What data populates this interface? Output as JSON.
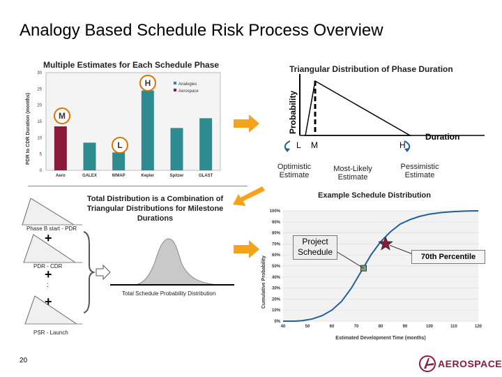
{
  "title": "Analogy Based Schedule Risk Process Overview",
  "left_panel": {
    "heading": "Multiple Estimates for Each Schedule Phase",
    "markers": {
      "h": "H",
      "m": "M",
      "l": "L"
    }
  },
  "right_panel": {
    "heading": "Triangular Distribution of Phase Duration",
    "y_label": "Probability",
    "x_label": "Duration",
    "points": {
      "l": "L",
      "m": "M",
      "h": "H"
    },
    "optimistic": "Optimistic Estimate",
    "most_likely": "Most-Likely Estimate",
    "pessimistic": "Pessimistic Estimate"
  },
  "middle": {
    "combination_text": "Total Distribution is a Combination of Triangular Distributions for Milestone Durations",
    "phase1": "Phase B start - PDR",
    "phase2": "PDR - CDR",
    "phase3": "PSR - Launch",
    "plus": "+",
    "dots": ":",
    "total_label": "Total Schedule Probability Distribution"
  },
  "example": {
    "heading": "Example Schedule Distribution",
    "project_box": "Project Schedule",
    "percentile": "70th Percentile"
  },
  "footer": {
    "page_number": "20",
    "logo_text": "AEROSPACE"
  },
  "colors": {
    "aero_bar": "#8b1a3a",
    "analogy_bar": "#2e8b8f",
    "arrow": "#f5a31a",
    "marker_ring": "#e07000",
    "curve": "#1f5fa0",
    "star": "#8b1a3a"
  },
  "chart_data": [
    {
      "type": "bar",
      "title": "",
      "ylabel": "PDR to CDR Duration (months)",
      "xlabel": "",
      "ylim": [
        0,
        30
      ],
      "yticks": [
        0,
        5,
        10,
        15,
        20,
        25,
        30
      ],
      "legend": [
        "Analogies",
        "Aerospace"
      ],
      "categories": [
        "Aero",
        "GALEX",
        "WMAP",
        "Kepler",
        "Spitzer",
        "GLAST"
      ],
      "values": [
        13.5,
        8.5,
        5.5,
        24.5,
        13,
        16
      ],
      "series_of": [
        "Aerospace",
        "Analogies",
        "Analogies",
        "Analogies",
        "Analogies",
        "Analogies"
      ]
    },
    {
      "type": "line",
      "title": "",
      "ylabel": "Cumulative Probability",
      "xlabel": "Estimated Development Time (months)",
      "xlim": [
        40,
        120
      ],
      "ylim": [
        0,
        100
      ],
      "xticks": [
        40,
        50,
        60,
        70,
        80,
        90,
        100,
        110,
        120
      ],
      "yticks": [
        "0%",
        "10%",
        "20%",
        "30%",
        "40%",
        "50%",
        "60%",
        "70%",
        "80%",
        "90%",
        "100%"
      ],
      "x": [
        40,
        45,
        48,
        52,
        56,
        60,
        64,
        68,
        72,
        76,
        80,
        84,
        88,
        92,
        96,
        100,
        105,
        110,
        115,
        120
      ],
      "y": [
        0,
        0,
        0.5,
        2,
        5,
        10,
        18,
        30,
        45,
        60,
        72,
        81,
        88,
        92,
        95,
        97,
        98.5,
        99.3,
        99.8,
        100
      ],
      "project_point": [
        73,
        48
      ],
      "percentile_point": [
        82,
        70
      ]
    }
  ]
}
